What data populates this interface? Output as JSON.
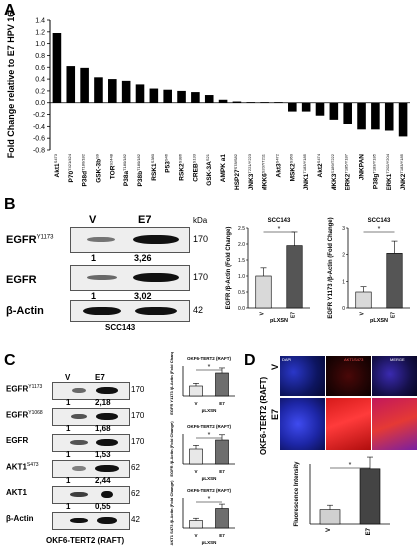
{
  "panelA": {
    "letter": "A",
    "ylabel": "Fold Change relative to E7 HPV 16",
    "chart_data": {
      "type": "bar",
      "title": "",
      "ylabel": "Fold Change relative to E7 HPV 16",
      "ylim": [
        -0.8,
        1.4
      ],
      "yticks": [
        "1.4",
        "1.2",
        "1.0",
        "0.8",
        "0.6",
        "0.4",
        "0.2",
        "0.0",
        "-0.2",
        "-0.4",
        "-0.6",
        "-0.8"
      ],
      "categories": [
        {
          "name": "Akt1",
          "sup": "S473",
          "value": 1.18
        },
        {
          "name": "P70",
          "sup": "T421/424",
          "value": 0.62
        },
        {
          "name": "P38d",
          "sup": "T180/182",
          "value": 0.59
        },
        {
          "name": "GSK-3b",
          "sup": "S9",
          "value": 0.43
        },
        {
          "name": "TOR",
          "sup": "S2448",
          "value": 0.4
        },
        {
          "name": "P38a",
          "sup": "T180/182",
          "value": 0.37
        },
        {
          "name": "P38b",
          "sup": "T180/182",
          "value": 0.31
        },
        {
          "name": "RSK1",
          "sup": "S380",
          "value": 0.24
        },
        {
          "name": "P53",
          "sup": "S46",
          "value": 0.22
        },
        {
          "name": "RSK2",
          "sup": "S386",
          "value": 0.2
        },
        {
          "name": "CREB",
          "sup": "S133",
          "value": 0.18
        },
        {
          "name": "GSK-3A",
          "sup": "S21",
          "value": 0.13
        },
        {
          "name": "AMPK a1",
          "sup": "",
          "value": 0.05
        },
        {
          "name": "HSP27",
          "sup": "S78/S82",
          "value": 0.02
        },
        {
          "name": "JNK3",
          "sup": "T221/Y223",
          "value": 0.01
        },
        {
          "name": "MKK6",
          "sup": "S207/T211",
          "value": 0.01
        },
        {
          "name": "Akt3",
          "sup": "S472",
          "value": 0.01
        },
        {
          "name": "MSK2",
          "sup": "S360",
          "value": -0.15
        },
        {
          "name": "JNK1",
          "sup": "T183/Y185",
          "value": -0.15
        },
        {
          "name": "Akt2",
          "sup": "S474",
          "value": -0.22
        },
        {
          "name": "MKK3",
          "sup": "S189/T222",
          "value": -0.29
        },
        {
          "name": "ERK2",
          "sup": "T185/Y187",
          "value": -0.36
        },
        {
          "name": "JNKPAN",
          "sup": "",
          "value": -0.45
        },
        {
          "name": "P38g",
          "sup": "T183/Y185",
          "value": -0.45
        },
        {
          "name": "ERK1",
          "sup": "T202/Y204",
          "value": -0.47
        },
        {
          "name": "JNK2",
          "sup": "T183/Y185",
          "value": -0.57
        }
      ]
    }
  },
  "panelB": {
    "letter": "B",
    "lane_v": "V",
    "lane_e7": "E7",
    "kda": "kDa",
    "rows": [
      {
        "label": "EGFR",
        "sup": "Y1173",
        "kda": "170",
        "left": "1",
        "right": "3,26"
      },
      {
        "label": "EGFR",
        "sup": "",
        "kda": "170",
        "left": "1",
        "right": "3,02"
      },
      {
        "label": "β-Actin",
        "sup": "",
        "kda": "42",
        "left": "",
        "right": ""
      }
    ],
    "cell_line": "SCC143",
    "chart1": {
      "type": "bar",
      "title": "SCC143",
      "ylabel": "EGFR /β-Actin (Fold Change)",
      "xlabel": "pLXSN",
      "categories": [
        "V",
        "E7"
      ],
      "values": [
        1.0,
        1.95
      ],
      "ylim": [
        0,
        2.5
      ],
      "yticks": [
        "2.5",
        "2.0",
        "1.5",
        "1.0",
        "0.5",
        "0.0"
      ],
      "sig": "*"
    },
    "chart2": {
      "type": "bar",
      "title": "SCC143",
      "ylabel": "EGFR Y1173 /β-Actin (Fold Change)",
      "xlabel": "pLXSN",
      "categories": [
        "V",
        "E7"
      ],
      "values": [
        0.6,
        2.05
      ],
      "ylim": [
        0,
        3.0
      ],
      "yticks": [
        "3",
        "2",
        "1",
        "0"
      ],
      "sig": "*"
    }
  },
  "panelC": {
    "letter": "C",
    "lane_v": "V",
    "lane_e7": "E7",
    "rows": [
      {
        "label": "EGFR",
        "sup": "Y1173",
        "kda": "170",
        "left": "1",
        "right": "2,18"
      },
      {
        "label": "EGFR",
        "sup": "Y1068",
        "kda": "170",
        "left": "1",
        "right": "1,68"
      },
      {
        "label": "EGFR",
        "sup": "",
        "kda": "170",
        "left": "1",
        "right": "1,53"
      },
      {
        "label": "AKT1",
        "sup": "S473",
        "kda": "62",
        "left": "1",
        "right": "2,44"
      },
      {
        "label": "AKT1",
        "sup": "",
        "kda": "62",
        "left": "1",
        "right": "0,55"
      },
      {
        "label": "β-Actin",
        "sup": "",
        "kda": "42",
        "left": "",
        "right": ""
      }
    ],
    "cell_line": "OKF6-TERT2 (RAFT)",
    "charts": [
      {
        "type": "bar",
        "title": "OKF6-TERT2 (RAFT)",
        "ylabel": "EGFR Y1173 /β-Actin (Fold Change)",
        "xlabel": "pLXSN",
        "categories": [
          "V",
          "E7"
        ],
        "values": [
          1.0,
          2.3
        ],
        "ylim": [
          0,
          3
        ],
        "sig": "*"
      },
      {
        "type": "bar",
        "title": "OKF6-TERT2 (RAFT)",
        "ylabel": "EGFR /β-Actin (Fold Change)",
        "xlabel": "pLXSN",
        "categories": [
          "V",
          "E7"
        ],
        "values": [
          1.0,
          1.6
        ],
        "ylim": [
          0,
          2
        ],
        "sig": "*"
      },
      {
        "type": "bar",
        "title": "OKF6-TERT2 (RAFT)",
        "ylabel": "AKT1 S473 /β-Actin (Fold Change)",
        "xlabel": "pLXSN",
        "categories": [
          "V",
          "E7"
        ],
        "values": [
          1.0,
          2.6
        ],
        "ylim": [
          0,
          4
        ],
        "sig": "*"
      }
    ]
  },
  "panelD": {
    "letter": "D",
    "row_v": "V",
    "row_e7": "E7",
    "side_label": "OKF6-TERT2 (RAFT)",
    "ch_dapi": "DAPI",
    "ch_akt": "AKT1S473",
    "ch_merge": "MERGE",
    "chart": {
      "type": "bar",
      "ylabel": "Fluorescence Intensity",
      "categories": [
        "V",
        "E7"
      ],
      "values": [
        12,
        46
      ],
      "ylim": [
        0,
        50
      ],
      "sig": "*"
    }
  }
}
